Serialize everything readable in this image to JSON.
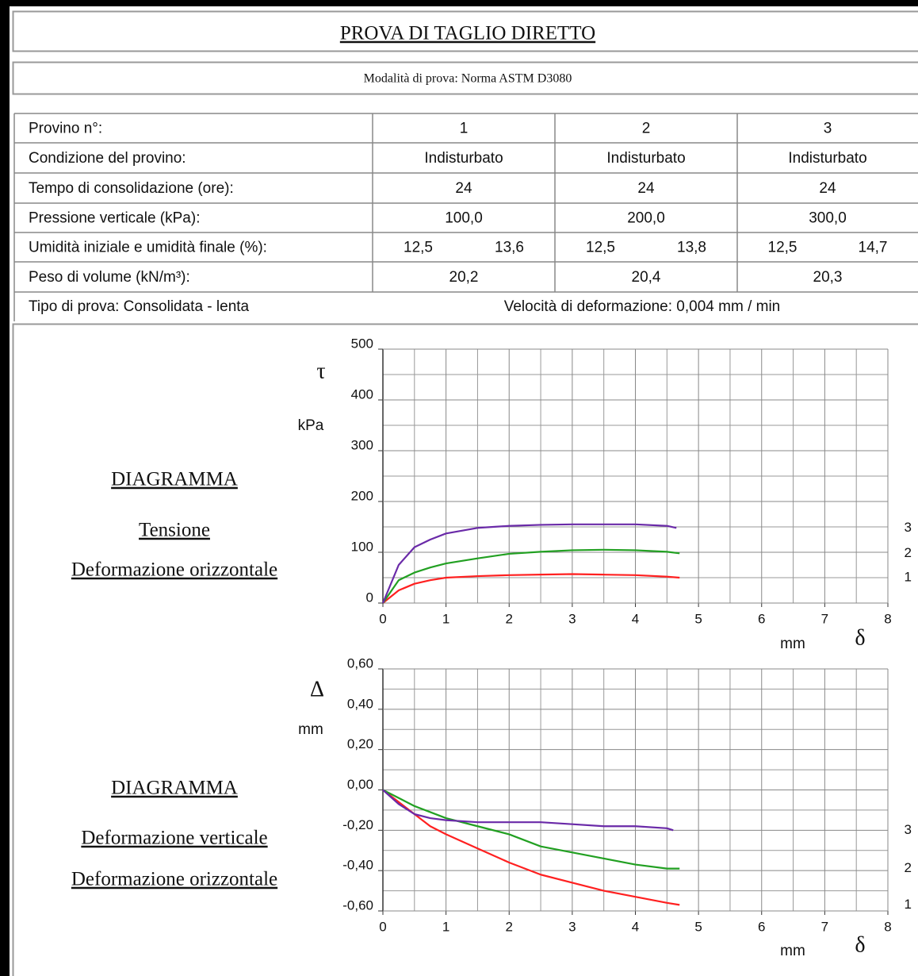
{
  "header": {
    "title": "PROVA DI TAGLIO DIRETTO",
    "subtitle": "Modalità di prova:  Norma ASTM D3080"
  },
  "table": {
    "rows": [
      [
        "Provino n°:",
        "1",
        "2",
        "3"
      ],
      [
        "Condizione del provino:",
        "Indisturbato",
        "Indisturbato",
        "Indisturbato"
      ],
      [
        "Tempo di consolidazione (ore):",
        "24",
        "24",
        "24"
      ],
      [
        "Pressione verticale (kPa):",
        "100,0",
        "200,0",
        "300,0"
      ],
      [
        "Umidità iniziale e umidità finale (%):",
        "12,5",
        "13,6",
        "12,5",
        "13,8",
        "12,5",
        "14,7"
      ],
      [
        "Peso di volume (kN/m³):",
        "20,2",
        "20,4",
        "20,3"
      ]
    ],
    "footer": [
      "Tipo di prova:  Consolidata - lenta",
      "Velocità di deformazione:  0,004 mm / min"
    ]
  },
  "chart_data": [
    {
      "type": "line",
      "caption": [
        "DIAGRAMMA",
        "Tensione",
        "Deformazione orizzontale"
      ],
      "y_label": "τ",
      "y_unit": "kPa",
      "x_label": "δ",
      "x_unit": "mm",
      "xlim": [
        0,
        8
      ],
      "xticks": [
        0,
        1,
        2,
        3,
        4,
        5,
        6,
        7,
        8
      ],
      "minor_xticks": [
        0.5,
        1.5,
        2.5,
        3.5,
        4.5,
        5.5,
        6.5,
        7.5
      ],
      "ylim": [
        0,
        500
      ],
      "yticks": [
        0,
        100,
        200,
        300,
        400,
        500
      ],
      "minor_yticks": [
        50,
        150,
        250,
        350,
        450
      ],
      "grid": true,
      "series": [
        {
          "name": "1",
          "color": "#ff2020",
          "x": [
            0,
            0.25,
            0.5,
            0.75,
            1,
            1.5,
            2,
            2.5,
            3,
            3.5,
            4,
            4.5,
            4.7
          ],
          "values": [
            0,
            25,
            38,
            45,
            50,
            53,
            55,
            56,
            57,
            56,
            55,
            52,
            50
          ]
        },
        {
          "name": "2",
          "color": "#22a022",
          "x": [
            0,
            0.25,
            0.5,
            0.75,
            1,
            1.5,
            2,
            2.5,
            3,
            3.5,
            4,
            4.5,
            4.7
          ],
          "values": [
            0,
            45,
            60,
            70,
            78,
            88,
            97,
            101,
            104,
            105,
            104,
            101,
            98
          ]
        },
        {
          "name": "3",
          "color": "#6a2aa8",
          "x": [
            0,
            0.25,
            0.5,
            0.75,
            1,
            1.5,
            2,
            2.5,
            3,
            3.5,
            4,
            4.5,
            4.65
          ],
          "values": [
            0,
            75,
            110,
            125,
            137,
            148,
            152,
            154,
            155,
            155,
            155,
            152,
            148
          ]
        }
      ]
    },
    {
      "type": "line",
      "caption": [
        "DIAGRAMMA",
        "Deformazione verticale",
        "Deformazione orizzontale"
      ],
      "y_label": "Δ",
      "y_unit": "mm",
      "x_label": "δ",
      "x_unit": "mm",
      "xlim": [
        0,
        8
      ],
      "xticks": [
        0,
        1,
        2,
        3,
        4,
        5,
        6,
        7,
        8
      ],
      "minor_xticks": [
        0.5,
        1.5,
        2.5,
        3.5,
        4.5,
        5.5,
        6.5,
        7.5
      ],
      "ylim": [
        -0.6,
        0.6
      ],
      "yticks": [
        {
          "value": 0.6,
          "label": "0,60"
        },
        {
          "value": 0.4,
          "label": "0,40"
        },
        {
          "value": 0.2,
          "label": "0,20"
        },
        {
          "value": 0,
          "label": "0,00"
        },
        {
          "value": -0.2,
          "label": "-0,20"
        },
        {
          "value": -0.4,
          "label": "-0,40"
        },
        {
          "value": -0.6,
          "label": "-0,60"
        }
      ],
      "minor_yticks": [
        0.5,
        0.3,
        0.1,
        -0.1,
        -0.3,
        -0.5
      ],
      "grid": true,
      "series": [
        {
          "name": "1",
          "color": "#ff2020",
          "x": [
            0,
            0.25,
            0.5,
            0.75,
            1,
            1.5,
            2,
            2.5,
            3,
            3.5,
            4,
            4.5,
            4.7
          ],
          "values": [
            0,
            -0.06,
            -0.12,
            -0.18,
            -0.22,
            -0.29,
            -0.36,
            -0.42,
            -0.46,
            -0.5,
            -0.53,
            -0.56,
            -0.57
          ]
        },
        {
          "name": "2",
          "color": "#22a022",
          "x": [
            0,
            0.25,
            0.5,
            0.75,
            1,
            1.5,
            2,
            2.5,
            3,
            3.5,
            4,
            4.5,
            4.7
          ],
          "values": [
            0,
            -0.04,
            -0.08,
            -0.11,
            -0.14,
            -0.18,
            -0.22,
            -0.28,
            -0.31,
            -0.34,
            -0.37,
            -0.39,
            -0.39
          ]
        },
        {
          "name": "3",
          "color": "#6a2aa8",
          "x": [
            0,
            0.25,
            0.5,
            0.75,
            1,
            1.5,
            2,
            2.5,
            3,
            3.5,
            4,
            4.5,
            4.6
          ],
          "values": [
            0,
            -0.07,
            -0.12,
            -0.14,
            -0.15,
            -0.16,
            -0.16,
            -0.16,
            -0.17,
            -0.18,
            -0.18,
            -0.19,
            -0.2
          ]
        }
      ]
    }
  ]
}
